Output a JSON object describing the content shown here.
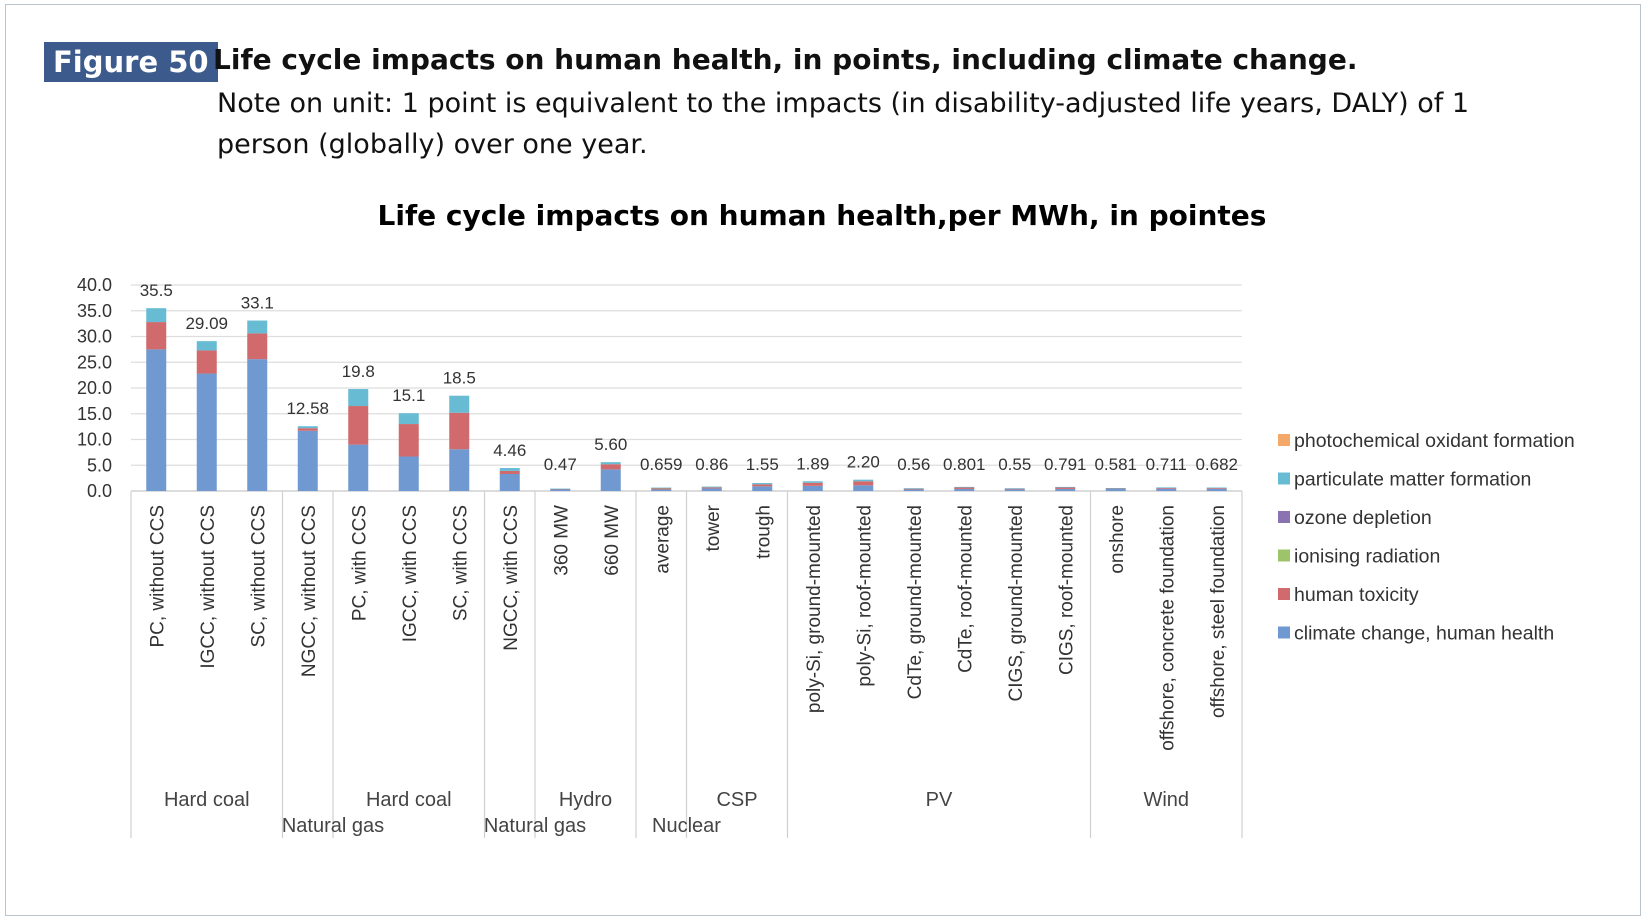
{
  "figure": {
    "badge": "Figure 50",
    "title": "Life cycle impacts on human health, in points, including climate change.",
    "note": "Note on unit: 1 point is equivalent to the impacts (in disability-adjusted life years, DALY) of 1 person (globally) over one year."
  },
  "chart_data": {
    "type": "bar",
    "stacked": true,
    "title": "Life cycle impacts on human health,per MWh, in pointes",
    "xlabel": "",
    "ylabel": "",
    "ylim": [
      0,
      40
    ],
    "yticks": [
      "0.0",
      "5.0",
      "10.0",
      "15.0",
      "20.0",
      "25.0",
      "30.0",
      "35.0",
      "40.0"
    ],
    "grid": true,
    "legend_position": "right",
    "categories": [
      "PC, without CCS",
      "IGCC, without CCS",
      "SC, without CCS",
      "NGCC, without CCS",
      "PC, with CCS",
      "IGCC, with CCS",
      "SC, with CCS",
      "NGCC, with CCS",
      "360 MW",
      "660 MW",
      "average",
      "tower",
      "trough",
      "poly-Si, ground-mounted",
      "poly-Si, roof-mounted",
      "CdTe, ground-mounted",
      "CdTe, roof-mounted",
      "CIGS, ground-mounted",
      "CIGS, roof-mounted",
      "onshore",
      "offshore, concrete foundation",
      "offshore, steel foundation"
    ],
    "groups": [
      {
        "name": "Hard coal",
        "count": 3
      },
      {
        "name": "Natural gas",
        "count": 1
      },
      {
        "name": "Hard coal",
        "count": 3
      },
      {
        "name": "Natural gas",
        "count": 1
      },
      {
        "name": "Hydro",
        "count": 2
      },
      {
        "name": "Nuclear",
        "count": 1
      },
      {
        "name": "CSP",
        "count": 2
      },
      {
        "name": "PV",
        "count": 6
      },
      {
        "name": "Wind",
        "count": 3
      }
    ],
    "totals_labels": [
      "35.5",
      "29.09",
      "33.1",
      "12.58",
      "19.8",
      "15.1",
      "18.5",
      "4.46",
      "0.47",
      "5.60",
      "0.659",
      "0.86",
      "1.55",
      "1.89",
      "2.20",
      "0.56",
      "0.801",
      "0.55",
      "0.791",
      "0.581",
      "0.711",
      "0.682"
    ],
    "series": [
      {
        "name": "climate change, human health",
        "color": "#6f99d0",
        "values": [
          27.5,
          22.8,
          25.6,
          11.7,
          9.0,
          6.7,
          8.1,
          3.3,
          0.35,
          4.2,
          0.3,
          0.5,
          0.9,
          1.0,
          1.1,
          0.3,
          0.4,
          0.3,
          0.4,
          0.4,
          0.45,
          0.43
        ]
      },
      {
        "name": "human toxicity",
        "color": "#d06a6c",
        "values": [
          5.3,
          4.5,
          5.0,
          0.5,
          7.5,
          6.3,
          7.1,
          0.6,
          0.05,
          1.0,
          0.3,
          0.2,
          0.4,
          0.6,
          0.8,
          0.15,
          0.3,
          0.15,
          0.3,
          0.1,
          0.15,
          0.15
        ]
      },
      {
        "name": "ionising radiation",
        "color": "#9dc46b",
        "values": [
          0,
          0,
          0,
          0,
          0,
          0,
          0,
          0,
          0,
          0,
          0.02,
          0,
          0,
          0,
          0,
          0,
          0,
          0,
          0,
          0,
          0,
          0
        ]
      },
      {
        "name": "ozone depletion",
        "color": "#8b72b0",
        "values": [
          0,
          0,
          0,
          0,
          0,
          0,
          0,
          0,
          0,
          0,
          0,
          0,
          0,
          0,
          0,
          0,
          0,
          0,
          0,
          0,
          0,
          0
        ]
      },
      {
        "name": "particulate matter formation",
        "color": "#67bcd4",
        "values": [
          2.7,
          1.8,
          2.5,
          0.38,
          3.3,
          2.1,
          3.3,
          0.56,
          0.07,
          0.4,
          0.04,
          0.16,
          0.25,
          0.29,
          0.3,
          0.11,
          0.1,
          0.1,
          0.09,
          0.08,
          0.11,
          0.1
        ]
      },
      {
        "name": "photochemical oxidant formation",
        "color": "#f4a86a",
        "values": [
          0,
          0,
          0,
          0,
          0,
          0,
          0,
          0,
          0,
          0,
          0,
          0,
          0,
          0,
          0,
          0,
          0,
          0,
          0,
          0,
          0,
          0
        ]
      }
    ]
  }
}
